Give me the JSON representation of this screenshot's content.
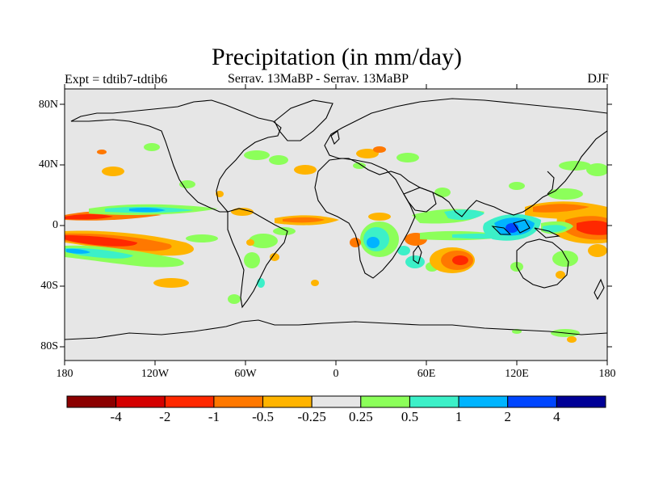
{
  "title": "Precipitation (in mm/day)",
  "left_label": "Expt = tdtib7-tdtib6",
  "center_label": "Serrav.   13MaBP - Serrav.   13MaBP",
  "right_label": "DJF",
  "y_ticks": [
    "80N",
    "40N",
    "0",
    "40S",
    "80S"
  ],
  "x_ticks": [
    "180",
    "120W",
    "60W",
    "0",
    "60E",
    "120E",
    "180"
  ],
  "colorbar": {
    "labels": [
      "-4",
      "-2",
      "-1",
      "-0.5",
      "-0.25",
      "0.25",
      "0.5",
      "1",
      "2",
      "4"
    ],
    "colors": [
      "#8b0000",
      "#d40000",
      "#ff2800",
      "#ff7800",
      "#ffb400",
      "#e6e6e6",
      "#8cff5a",
      "#3cf0c8",
      "#00b4ff",
      "#0046ff",
      "#000096"
    ]
  },
  "colors": {
    "background": "#e6e6e6",
    "coastline": "#000000"
  }
}
